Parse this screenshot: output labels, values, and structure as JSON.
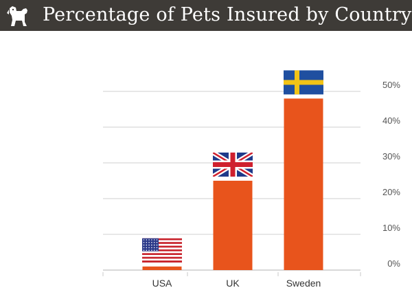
{
  "header": {
    "title": "Percentage of Pets Insured by Country",
    "logo_icon": "dog-icon"
  },
  "chart_data": {
    "type": "bar",
    "title": "Percentage of Pets Insured by Country",
    "categories": [
      "USA",
      "UK",
      "Sweden"
    ],
    "values": [
      1,
      25,
      48
    ],
    "category_icons": [
      "usa-flag-icon",
      "uk-flag-icon",
      "sweden-flag-icon"
    ],
    "y_ticks": [
      "0%",
      "10%",
      "20%",
      "30%",
      "40%",
      "50%"
    ],
    "ylim": [
      0,
      50
    ],
    "ytick_position": "right",
    "grid": true,
    "legend": "none",
    "bar_color": "#e8541c"
  }
}
